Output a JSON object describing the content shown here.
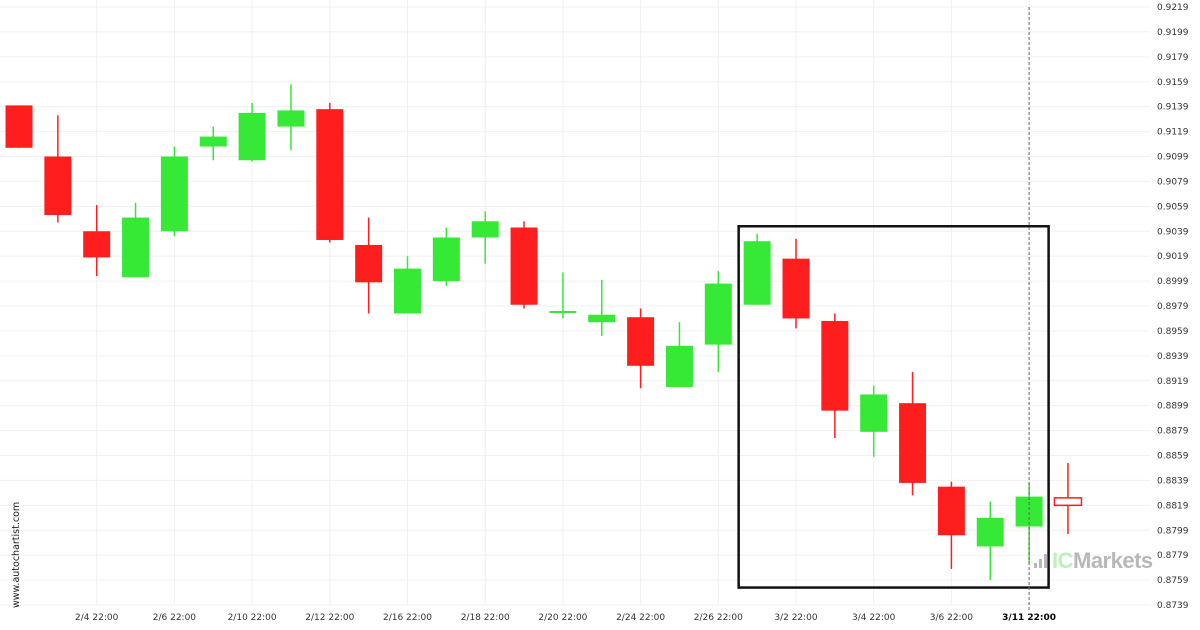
{
  "watermark": "www.autochartist.com",
  "logo": {
    "prefix": "IC",
    "suffix": "Markets"
  },
  "colors": {
    "up": "#36e936",
    "down": "#ff1e1e",
    "grid": "#f0f0f0",
    "box": "#111111"
  },
  "chart_data": {
    "type": "candlestick",
    "ylim": [
      0.8739,
      0.9219
    ],
    "yticks": [
      "0.9219",
      "0.9199",
      "0.9179",
      "0.9159",
      "0.9139",
      "0.9119",
      "0.9099",
      "0.9079",
      "0.9059",
      "0.9039",
      "0.9019",
      "0.8999",
      "0.8979",
      "0.8959",
      "0.8939",
      "0.8919",
      "0.8899",
      "0.8879",
      "0.8859",
      "0.8839",
      "0.8819",
      "0.8799",
      "0.8779",
      "0.8759",
      "0.8739"
    ],
    "xlabels": [
      {
        "index": 2,
        "label": "2/4 22:00"
      },
      {
        "index": 4,
        "label": "2/6 22:00"
      },
      {
        "index": 6,
        "label": "2/10 22:00"
      },
      {
        "index": 8,
        "label": "2/12 22:00"
      },
      {
        "index": 10,
        "label": "2/16 22:00"
      },
      {
        "index": 12,
        "label": "2/18 22:00"
      },
      {
        "index": 14,
        "label": "2/20 22:00"
      },
      {
        "index": 16,
        "label": "2/24 22:00"
      },
      {
        "index": 18,
        "label": "2/26 22:00"
      },
      {
        "index": 20,
        "label": "3/2 22:00"
      },
      {
        "index": 22,
        "label": "3/4 22:00"
      },
      {
        "index": 24,
        "label": "3/6 22:00"
      },
      {
        "index": 26,
        "label": "3/11 22:00",
        "bold": true
      }
    ],
    "candles": [
      {
        "o": 0.914,
        "h": 0.914,
        "l": 0.9106,
        "c": 0.9106
      },
      {
        "o": 0.9099,
        "h": 0.9132,
        "l": 0.9046,
        "c": 0.9052
      },
      {
        "o": 0.9039,
        "h": 0.906,
        "l": 0.9003,
        "c": 0.9018
      },
      {
        "o": 0.9002,
        "h": 0.9062,
        "l": 0.9002,
        "c": 0.905
      },
      {
        "o": 0.9039,
        "h": 0.9107,
        "l": 0.9035,
        "c": 0.9099
      },
      {
        "o": 0.9107,
        "h": 0.9123,
        "l": 0.9096,
        "c": 0.9115
      },
      {
        "o": 0.9096,
        "h": 0.9142,
        "l": 0.9095,
        "c": 0.9134
      },
      {
        "o": 0.9123,
        "h": 0.9157,
        "l": 0.9104,
        "c": 0.9136
      },
      {
        "o": 0.9137,
        "h": 0.9142,
        "l": 0.903,
        "c": 0.9032
      },
      {
        "o": 0.9028,
        "h": 0.905,
        "l": 0.8973,
        "c": 0.8998
      },
      {
        "o": 0.8973,
        "h": 0.9019,
        "l": 0.8973,
        "c": 0.9009
      },
      {
        "o": 0.8999,
        "h": 0.9042,
        "l": 0.8995,
        "c": 0.9034
      },
      {
        "o": 0.9034,
        "h": 0.9055,
        "l": 0.9013,
        "c": 0.9047
      },
      {
        "o": 0.9042,
        "h": 0.9047,
        "l": 0.8977,
        "c": 0.898
      },
      {
        "o": 0.8974,
        "h": 0.9006,
        "l": 0.8969,
        "c": 0.8975
      },
      {
        "o": 0.8966,
        "h": 0.9,
        "l": 0.8955,
        "c": 0.8972
      },
      {
        "o": 0.897,
        "h": 0.8977,
        "l": 0.8913,
        "c": 0.8931
      },
      {
        "o": 0.8914,
        "h": 0.8966,
        "l": 0.8914,
        "c": 0.8947
      },
      {
        "o": 0.8948,
        "h": 0.9007,
        "l": 0.8926,
        "c": 0.8997
      },
      {
        "o": 0.898,
        "h": 0.9037,
        "l": 0.898,
        "c": 0.9031
      },
      {
        "o": 0.9017,
        "h": 0.9033,
        "l": 0.8961,
        "c": 0.8969
      },
      {
        "o": 0.8967,
        "h": 0.8973,
        "l": 0.8873,
        "c": 0.8895
      },
      {
        "o": 0.8878,
        "h": 0.8915,
        "l": 0.8858,
        "c": 0.8908
      },
      {
        "o": 0.8901,
        "h": 0.8926,
        "l": 0.8827,
        "c": 0.8837
      },
      {
        "o": 0.8834,
        "h": 0.8838,
        "l": 0.8768,
        "c": 0.8795
      },
      {
        "o": 0.8786,
        "h": 0.8822,
        "l": 0.8759,
        "c": 0.8809
      },
      {
        "o": 0.8802,
        "h": 0.8837,
        "l": 0.8773,
        "c": 0.8826
      },
      {
        "o": 0.8825,
        "h": 0.8853,
        "l": 0.8796,
        "c": 0.8819,
        "hollow": true
      }
    ],
    "pattern_box": {
      "start_index": 19,
      "end_index": 26,
      "top": 0.9043,
      "bottom": 0.8753
    },
    "current_marker_index": 26
  }
}
